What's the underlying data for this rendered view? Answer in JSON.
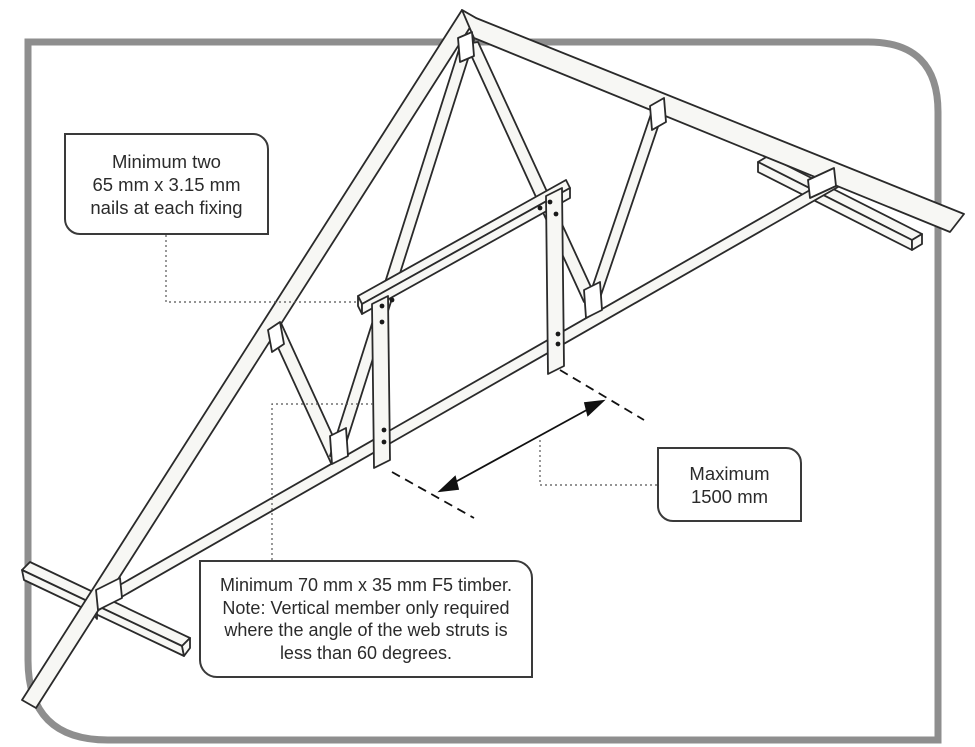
{
  "callouts": {
    "nails": {
      "lines": [
        "Minimum two",
        "65 mm x 3.15 mm",
        "nails at each fixing"
      ]
    },
    "max_spacing": {
      "lines": [
        "Maximum",
        "1500 mm"
      ]
    },
    "timber": {
      "lines": [
        "Minimum 70 mm x 35 mm F5 timber.",
        "Note: Vertical member only required",
        "where the angle of the web struts is",
        "less than 60 degrees."
      ]
    }
  },
  "colors": {
    "frame": "#8e8e8e",
    "timber_fill": "#f7f7f4",
    "outline": "#2a2a2a",
    "leader": "#555555"
  }
}
